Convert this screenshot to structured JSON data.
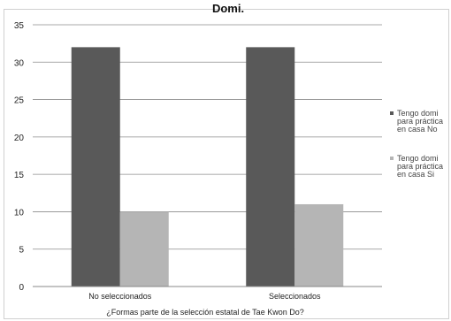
{
  "chart_data": {
    "type": "bar",
    "title": "Domi.",
    "xlabel": "¿Formas parte de la selección estatal de Tae Kwon Do?",
    "ylabel": "",
    "categories": [
      "No seleccionados",
      "Seleccionados"
    ],
    "ylim": [
      0,
      35
    ],
    "yticks": [
      0,
      5,
      10,
      15,
      20,
      25,
      30,
      35
    ],
    "grid": true,
    "legend_position": "right",
    "series": [
      {
        "name": "Tengo domi para práctica en casa No",
        "legend_lines": [
          "Tengo domi",
          "para práctica",
          "en casa No"
        ],
        "color": "#595959",
        "values": [
          32,
          32
        ]
      },
      {
        "name": "Tengo domi para práctica en casa Si",
        "legend_lines": [
          "Tengo domi",
          "para práctica",
          "en casa Si"
        ],
        "color": "#b5b5b5",
        "values": [
          10,
          11
        ]
      }
    ]
  }
}
